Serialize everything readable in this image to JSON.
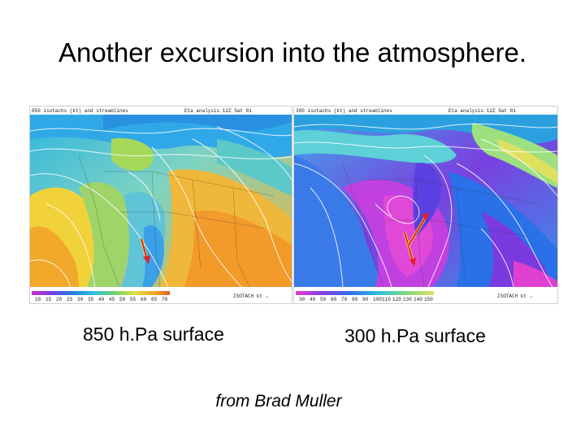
{
  "slide": {
    "title": "Another excursion into the atmosphere.",
    "credit": "from Brad Muller"
  },
  "maps": {
    "left": {
      "caption": "850 h.Pa surface",
      "header_left": "850 isotachs (kt) and streamlines",
      "header_right": "Eta analysis  12Z  Sat 01",
      "footer_right": "ISOTACH  kt  →",
      "legend_ticks": [
        "10",
        "15",
        "20",
        "25",
        "30",
        "35",
        "40",
        "45",
        "50",
        "55",
        "60",
        "65",
        "70"
      ]
    },
    "right": {
      "caption": "300 h.Pa surface",
      "header_left": "300 isotachs (kt) and streamlines",
      "header_right": "Eta analysis  12Z  Sat 01",
      "footer_right": "ISOTACH  kt  →",
      "legend_ticks": [
        "30",
        "40",
        "50",
        "60",
        "70",
        "80",
        "90",
        "100",
        "110",
        "120",
        "130",
        "140",
        "150"
      ]
    }
  },
  "colors": {
    "arrow": "#e0202a",
    "arrow_highlight": "#f2e63a"
  }
}
